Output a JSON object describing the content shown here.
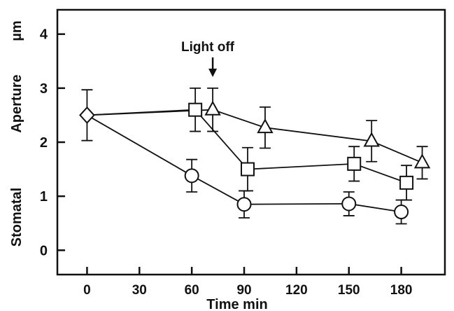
{
  "chart_data": {
    "type": "line",
    "title": "",
    "xlabel": "Time min",
    "ylabel_parts": [
      "Stomatal",
      "Aperture",
      "µm"
    ],
    "xlim": [
      -17,
      205
    ],
    "ylim": [
      -0.45,
      4.45
    ],
    "x_ticks": [
      0,
      30,
      60,
      90,
      120,
      150,
      180
    ],
    "y_ticks": [
      0,
      1,
      2,
      3,
      4
    ],
    "annotation": {
      "text": "Light off",
      "x": 72
    },
    "series": [
      {
        "marker": "diamond",
        "points": [
          {
            "x": 0,
            "y": 2.5,
            "err": 0.47
          }
        ]
      },
      {
        "marker": "circle",
        "points": [
          {
            "x": 0,
            "y": 2.5,
            "err": 0
          },
          {
            "x": 60,
            "y": 1.38,
            "err": 0.3
          },
          {
            "x": 90,
            "y": 0.85,
            "err": 0.25
          },
          {
            "x": 150,
            "y": 0.86,
            "err": 0.22
          },
          {
            "x": 180,
            "y": 0.71,
            "err": 0.22
          }
        ]
      },
      {
        "marker": "square",
        "points": [
          {
            "x": 0,
            "y": 2.5,
            "err": 0
          },
          {
            "x": 62,
            "y": 2.6,
            "err": 0.4
          },
          {
            "x": 92,
            "y": 1.5,
            "err": 0.4
          },
          {
            "x": 153,
            "y": 1.6,
            "err": 0.32
          },
          {
            "x": 183,
            "y": 1.25,
            "err": 0.32
          }
        ]
      },
      {
        "marker": "triangle",
        "points": [
          {
            "x": 0,
            "y": 2.5,
            "err": 0
          },
          {
            "x": 72,
            "y": 2.6,
            "err": 0.4
          },
          {
            "x": 102,
            "y": 2.27,
            "err": 0.38
          },
          {
            "x": 163,
            "y": 2.02,
            "err": 0.38
          },
          {
            "x": 192,
            "y": 1.62,
            "err": 0.3
          }
        ]
      }
    ]
  }
}
